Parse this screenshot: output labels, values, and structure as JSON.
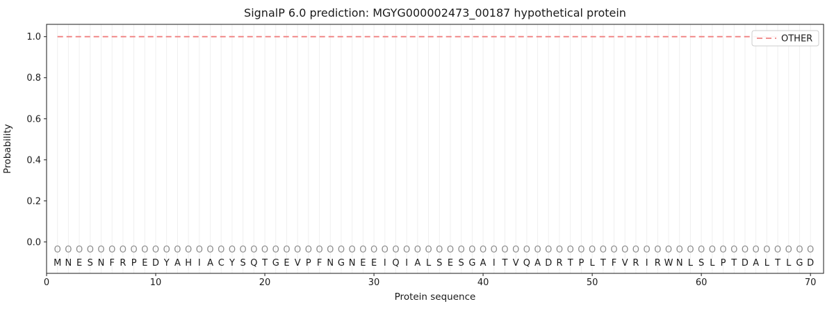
{
  "figure": {
    "title": "SignalP 6.0 prediction: MGYG000002473_00187 hypothetical protein",
    "xlabel": "Protein sequence",
    "ylabel": "Probability",
    "legend": {
      "label": "OTHER"
    }
  },
  "colors": {
    "other_line": "#f08080",
    "grid": "#efefef",
    "marker_gray": "#8c8c8c",
    "text": "#1a1a1a",
    "legend_border": "#cccccc",
    "background": "#ffffff"
  },
  "chart_data": {
    "type": "line",
    "title": "SignalP 6.0 prediction: MGYG000002473_00187 hypothetical protein",
    "xlabel": "Protein sequence",
    "ylabel": "Probability",
    "xlim": [
      0,
      71.2
    ],
    "ylim": [
      -0.153,
      1.06
    ],
    "xticks": [
      0,
      10,
      20,
      30,
      40,
      50,
      60,
      70
    ],
    "yticks": [
      0.0,
      0.2,
      0.4,
      0.6,
      0.8,
      1.0
    ],
    "grid": {
      "vertical_per_residue": true,
      "horizontal": false,
      "color": "#efefef"
    },
    "legend": {
      "position": "upper right",
      "entries": [
        {
          "label": "OTHER",
          "color": "#f08080",
          "linestyle": "dashed"
        }
      ]
    },
    "sequence": "MNESNFRPEDYAHIACYSQTGEVPFNGNEEIQIALSESGAITVQADRTPLTFVRIRWNLSLPTDALTLGD",
    "residue_marker": "O",
    "series": [
      {
        "name": "OTHER",
        "color": "#f08080",
        "linestyle": "dashed",
        "x": [
          1,
          2,
          3,
          4,
          5,
          6,
          7,
          8,
          9,
          10,
          11,
          12,
          13,
          14,
          15,
          16,
          17,
          18,
          19,
          20,
          21,
          22,
          23,
          24,
          25,
          26,
          27,
          28,
          29,
          30,
          31,
          32,
          33,
          34,
          35,
          36,
          37,
          38,
          39,
          40,
          41,
          42,
          43,
          44,
          45,
          46,
          47,
          48,
          49,
          50,
          51,
          52,
          53,
          54,
          55,
          56,
          57,
          58,
          59,
          60,
          61,
          62,
          63,
          64,
          65,
          66,
          67,
          68,
          69,
          70
        ],
        "y": [
          1.0,
          1.0,
          1.0,
          1.0,
          1.0,
          1.0,
          1.0,
          1.0,
          1.0,
          1.0,
          1.0,
          1.0,
          1.0,
          1.0,
          1.0,
          1.0,
          1.0,
          1.0,
          1.0,
          1.0,
          1.0,
          1.0,
          1.0,
          1.0,
          1.0,
          1.0,
          1.0,
          1.0,
          1.0,
          1.0,
          1.0,
          1.0,
          1.0,
          1.0,
          1.0,
          1.0,
          1.0,
          1.0,
          1.0,
          1.0,
          1.0,
          1.0,
          1.0,
          1.0,
          1.0,
          1.0,
          1.0,
          1.0,
          1.0,
          1.0,
          1.0,
          1.0,
          1.0,
          1.0,
          1.0,
          1.0,
          1.0,
          1.0,
          1.0,
          1.0,
          1.0,
          1.0,
          1.0,
          1.0,
          1.0,
          1.0,
          1.0,
          1.0,
          1.0,
          1.0
        ]
      }
    ]
  }
}
